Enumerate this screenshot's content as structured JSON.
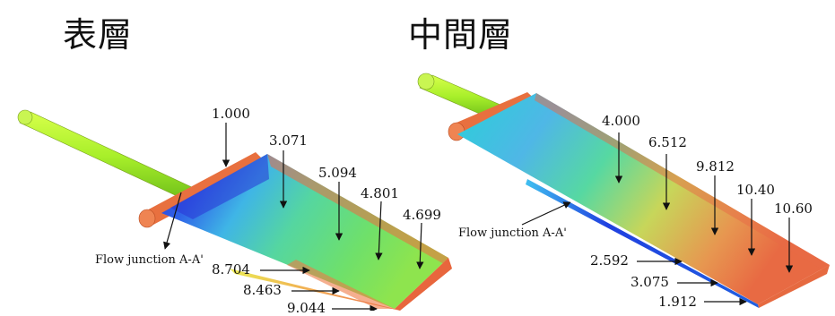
{
  "panels": [
    {
      "title": "表層",
      "flow_label": "Flow junction A-A'",
      "values": [
        "1.000",
        "3.071",
        "5.094",
        "4.801",
        "4.699",
        "8.704",
        "8.463",
        "9.044"
      ]
    },
    {
      "title": "中間層",
      "flow_label": "Flow junction A-A'",
      "values": [
        "4.000",
        "6.512",
        "9.812",
        "10.40",
        "10.60",
        "2.592",
        "3.075",
        "1.912"
      ]
    }
  ]
}
